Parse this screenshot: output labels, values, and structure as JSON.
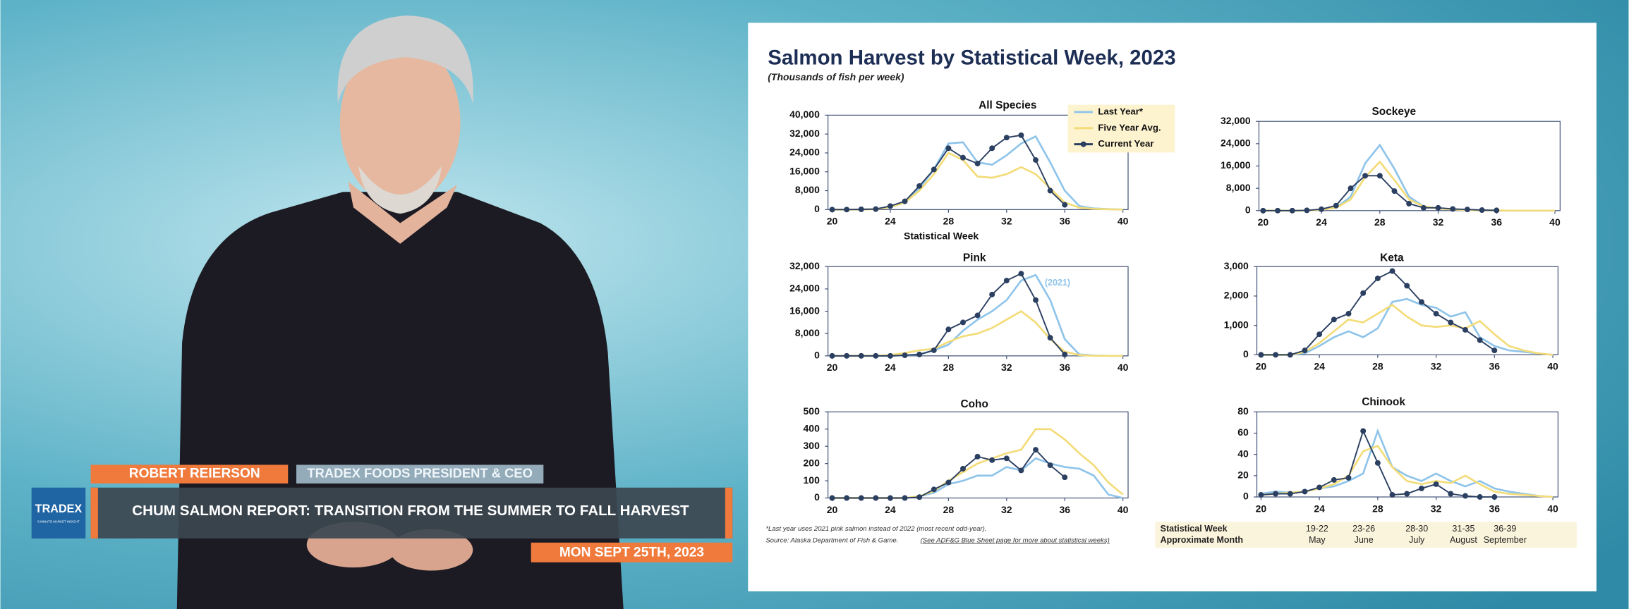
{
  "panel": {
    "title": "Salmon Harvest by Statistical Week, 2023",
    "subtitle": "(Thousands of fish per week)",
    "footnote": "*Last year uses 2021 pink salmon instead of 2022 (most recent odd-year).",
    "source": "Source: Alaska Department of Fish & Game.",
    "source_link": "(See ADF&G Blue Sheet page for more about statistical weeks)",
    "table": {
      "rows": [
        [
          "Statistical Week",
          "19-22",
          "23-26",
          "28-30",
          "31-35",
          "36-39"
        ],
        [
          "Approximate Month",
          "May",
          "June",
          "July",
          "August",
          "September"
        ]
      ]
    }
  },
  "lower_third": {
    "logo": "TRADEX",
    "logo_tagline": "5-MINUTE MARKET INSIGHT",
    "name": "ROBERT REIERSON",
    "role": "TRADEX FOODS PRESIDENT & CEO",
    "headline": "CHUM SALMON REPORT: TRANSITION FROM THE SUMMER TO FALL HARVEST",
    "date": "MON SEPT 25TH, 2023"
  },
  "chart_data": [
    {
      "type": "line",
      "title": "All Species",
      "x_label": "Statistical Week",
      "legend": "upper right",
      "x": [
        20,
        21,
        22,
        23,
        24,
        25,
        26,
        27,
        28,
        29,
        30,
        31,
        32,
        33,
        34,
        35,
        36,
        37,
        38,
        39,
        40
      ],
      "xlim": [
        20,
        40
      ],
      "xticks": [
        20,
        24,
        28,
        32,
        36,
        40
      ],
      "ylim": [
        0,
        40000
      ],
      "yticks": [
        0,
        {
          "value": 8000,
          "label": "8,000"
        },
        {
          "value": 16000,
          "label": "16,000"
        },
        {
          "value": 24000,
          "label": "24,000"
        },
        {
          "value": 32000,
          "label": "32,000"
        },
        {
          "value": 40000,
          "label": "40,000"
        }
      ],
      "series": [
        {
          "name": "Last Year*",
          "color": "#8fc4ea",
          "values": [
            0,
            0,
            0,
            300,
            1000,
            3000,
            9000,
            17000,
            28000,
            28500,
            20000,
            19000,
            23000,
            28000,
            31000,
            20000,
            8000,
            1500,
            500,
            200,
            0
          ]
        },
        {
          "name": "Five Year Avg.",
          "color": "#f3dc78",
          "values": [
            0,
            0,
            0,
            200,
            1000,
            3000,
            8000,
            15000,
            24000,
            21000,
            14000,
            13500,
            15000,
            18000,
            15000,
            9000,
            3000,
            800,
            300,
            100,
            0
          ]
        },
        {
          "name": "Current Year",
          "color": "#2b3f61",
          "values": [
            0,
            0,
            100,
            200,
            1500,
            3500,
            10000,
            17000,
            26000,
            22000,
            19500,
            26000,
            30500,
            31500,
            21000,
            8000,
            2000,
            null,
            null,
            null,
            null
          ]
        }
      ]
    },
    {
      "type": "line",
      "title": "Sockeye",
      "x": [
        20,
        21,
        22,
        23,
        24,
        25,
        26,
        27,
        28,
        29,
        30,
        31,
        32,
        33,
        34,
        35,
        36,
        37,
        38,
        39,
        40
      ],
      "xlim": [
        20,
        40
      ],
      "xticks": [
        20,
        24,
        28,
        32,
        36,
        40
      ],
      "ylim": [
        0,
        32000
      ],
      "yticks": [
        0,
        {
          "value": 8000,
          "label": "8,000"
        },
        {
          "value": 16000,
          "label": "16,000"
        },
        {
          "value": 24000,
          "label": "24,000"
        },
        {
          "value": 32000,
          "label": "32,000"
        }
      ],
      "series": [
        {
          "color": "#8fc4ea",
          "values": [
            0,
            0,
            0,
            0,
            300,
            1000,
            5000,
            17000,
            23500,
            15000,
            5000,
            1500,
            800,
            500,
            200,
            100,
            0,
            0,
            0,
            0,
            0
          ]
        },
        {
          "color": "#f3dc78",
          "values": [
            0,
            0,
            0,
            0,
            300,
            1000,
            4000,
            12000,
            17500,
            11000,
            4000,
            1500,
            800,
            400,
            200,
            100,
            50,
            0,
            0,
            0,
            0
          ]
        },
        {
          "color": "#2b3f61",
          "values": [
            0,
            0,
            0,
            100,
            500,
            1800,
            8000,
            12500,
            12500,
            7000,
            2500,
            1000,
            1000,
            600,
            400,
            200,
            100,
            null,
            null,
            null,
            null
          ]
        }
      ]
    },
    {
      "type": "line",
      "title": "Pink",
      "annotation": "(2021)",
      "x": [
        20,
        21,
        22,
        23,
        24,
        25,
        26,
        27,
        28,
        29,
        30,
        31,
        32,
        33,
        34,
        35,
        36,
        37,
        38,
        39,
        40
      ],
      "xlim": [
        20,
        40
      ],
      "xticks": [
        20,
        24,
        28,
        32,
        36,
        40
      ],
      "ylim": [
        0,
        32000
      ],
      "yticks": [
        0,
        {
          "value": 8000,
          "label": "8,000"
        },
        {
          "value": 16000,
          "label": "16,000"
        },
        {
          "value": 24000,
          "label": "24,000"
        },
        {
          "value": 32000,
          "label": "32,000"
        }
      ],
      "series": [
        {
          "color": "#8fc4ea",
          "values": [
            0,
            0,
            0,
            0,
            0,
            200,
            500,
            2000,
            4000,
            9000,
            13000,
            16000,
            20000,
            27000,
            29000,
            20000,
            6000,
            500,
            100,
            0,
            0
          ]
        },
        {
          "color": "#f3dc78",
          "values": [
            0,
            0,
            0,
            0,
            300,
            1000,
            2000,
            2500,
            5000,
            7000,
            8000,
            10000,
            13000,
            16000,
            12000,
            6000,
            1500,
            300,
            0,
            0,
            0
          ]
        },
        {
          "color": "#2b3f61",
          "values": [
            0,
            0,
            0,
            0,
            0,
            200,
            500,
            2000,
            9500,
            12000,
            14500,
            22000,
            27000,
            29500,
            20000,
            6500,
            500,
            null,
            null,
            null,
            null
          ]
        }
      ]
    },
    {
      "type": "line",
      "title": "Keta",
      "x": [
        20,
        21,
        22,
        23,
        24,
        25,
        26,
        27,
        28,
        29,
        30,
        31,
        32,
        33,
        34,
        35,
        36,
        37,
        38,
        39,
        40
      ],
      "xlim": [
        20,
        40
      ],
      "xticks": [
        20,
        24,
        28,
        32,
        36,
        40
      ],
      "ylim": [
        0,
        3000
      ],
      "yticks": [
        0,
        {
          "value": 1000,
          "label": "1,000"
        },
        {
          "value": 2000,
          "label": "2,000"
        },
        {
          "value": 3000,
          "label": "3,000"
        }
      ],
      "series": [
        {
          "color": "#8fc4ea",
          "values": [
            0,
            0,
            0,
            50,
            300,
            600,
            800,
            600,
            900,
            1800,
            1900,
            1700,
            1600,
            1300,
            1450,
            600,
            300,
            150,
            100,
            50,
            0
          ]
        },
        {
          "color": "#f3dc78",
          "values": [
            0,
            0,
            0,
            100,
            400,
            800,
            1200,
            1100,
            1400,
            1700,
            1300,
            1000,
            950,
            1000,
            900,
            1150,
            700,
            300,
            150,
            50,
            0
          ]
        },
        {
          "color": "#2b3f61",
          "values": [
            0,
            0,
            0,
            150,
            700,
            1200,
            1400,
            2100,
            2600,
            2850,
            2350,
            1800,
            1400,
            1100,
            850,
            500,
            150,
            null,
            null,
            null,
            null
          ]
        }
      ]
    },
    {
      "type": "line",
      "title": "Coho",
      "x": [
        20,
        21,
        22,
        23,
        24,
        25,
        26,
        27,
        28,
        29,
        30,
        31,
        32,
        33,
        34,
        35,
        36,
        37,
        38,
        39,
        40
      ],
      "xlim": [
        20,
        40
      ],
      "xticks": [
        20,
        24,
        28,
        32,
        36,
        40
      ],
      "ylim": [
        0,
        500
      ],
      "yticks": [
        0,
        100,
        200,
        300,
        400,
        500
      ],
      "series": [
        {
          "color": "#8fc4ea",
          "values": [
            0,
            0,
            0,
            0,
            0,
            0,
            10,
            30,
            80,
            100,
            130,
            130,
            180,
            160,
            230,
            200,
            180,
            170,
            130,
            20,
            0
          ]
        },
        {
          "color": "#f3dc78",
          "values": [
            0,
            0,
            0,
            0,
            0,
            0,
            10,
            40,
            100,
            150,
            200,
            230,
            260,
            280,
            400,
            400,
            340,
            260,
            190,
            90,
            20
          ]
        },
        {
          "color": "#2b3f61",
          "values": [
            0,
            0,
            0,
            0,
            0,
            0,
            5,
            50,
            90,
            170,
            240,
            220,
            230,
            160,
            280,
            190,
            120,
            null,
            null,
            null,
            null
          ]
        }
      ]
    },
    {
      "type": "line",
      "title": "Chinook",
      "x": [
        20,
        21,
        22,
        23,
        24,
        25,
        26,
        27,
        28,
        29,
        30,
        31,
        32,
        33,
        34,
        35,
        36,
        37,
        38,
        39,
        40
      ],
      "xlim": [
        20,
        40
      ],
      "xticks": [
        20,
        24,
        28,
        32,
        36,
        40
      ],
      "ylim": [
        0,
        80
      ],
      "yticks": [
        0,
        20,
        40,
        60,
        80
      ],
      "series": [
        {
          "color": "#8fc4ea",
          "values": [
            3,
            5,
            4,
            5,
            8,
            10,
            15,
            22,
            62,
            28,
            20,
            15,
            22,
            15,
            10,
            15,
            8,
            5,
            3,
            1,
            0
          ]
        },
        {
          "color": "#f3dc78",
          "values": [
            2,
            3,
            4,
            5,
            8,
            12,
            20,
            43,
            48,
            28,
            15,
            12,
            15,
            13,
            20,
            12,
            5,
            3,
            2,
            1,
            0
          ]
        },
        {
          "color": "#2b3f61",
          "values": [
            2,
            3,
            3,
            5,
            9,
            16,
            18,
            62,
            32,
            2,
            3,
            8,
            12,
            3,
            1,
            0,
            0,
            null,
            null,
            null,
            null
          ]
        }
      ]
    }
  ]
}
